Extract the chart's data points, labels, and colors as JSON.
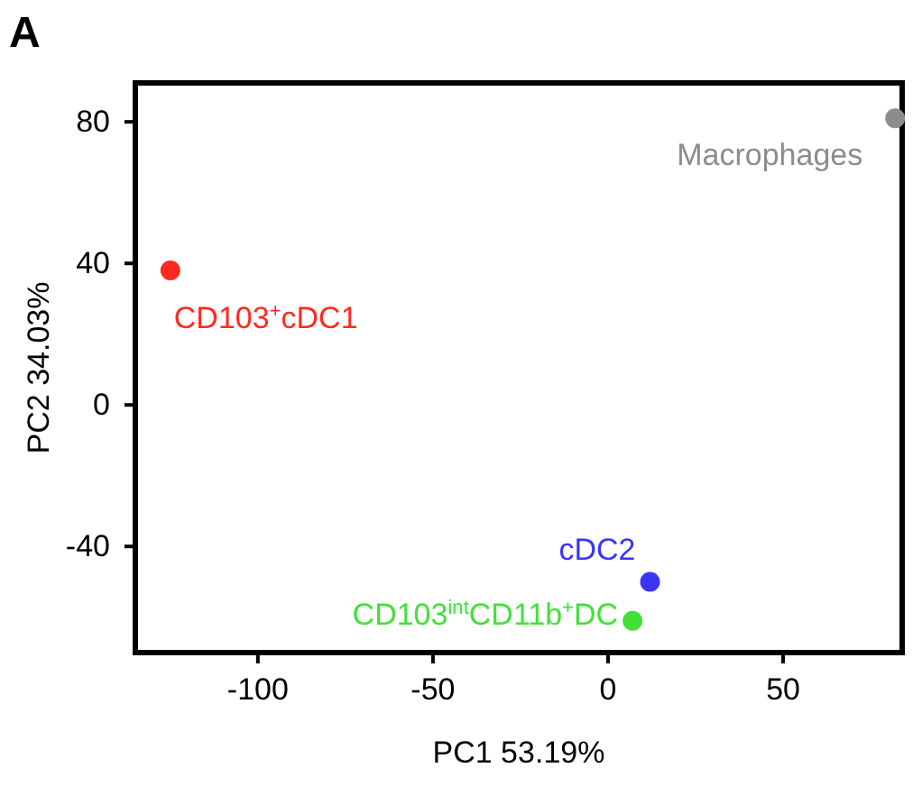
{
  "chart_data": {
    "type": "scatter",
    "xlabel": "PC1 53.19%",
    "ylabel": "PC2 34.03%",
    "annotations": [
      "A"
    ],
    "xlim": [
      -135,
      84
    ],
    "ylim": [
      -70,
      91
    ],
    "xticks": [
      -100,
      -50,
      0,
      50
    ],
    "yticks": [
      -40,
      0,
      40,
      80
    ],
    "grid": false,
    "legend": false,
    "marker": "circle",
    "series": [
      {
        "name": "CD103$^{+}$cDC1",
        "color": "#ff2a1f",
        "x": [
          -125
        ],
        "values": [
          38
        ]
      },
      {
        "name": "Macrophages",
        "color": "#8c8c8c",
        "x": [
          82
        ],
        "values": [
          81
        ]
      },
      {
        "name": "cDC2",
        "color": "#3a35f5",
        "x": [
          12
        ],
        "values": [
          -50
        ]
      },
      {
        "name": "CD103$^{int}$CD11b$^{+}$DC",
        "color": "#44e03a",
        "x": [
          7
        ],
        "values": [
          -61
        ]
      }
    ]
  }
}
